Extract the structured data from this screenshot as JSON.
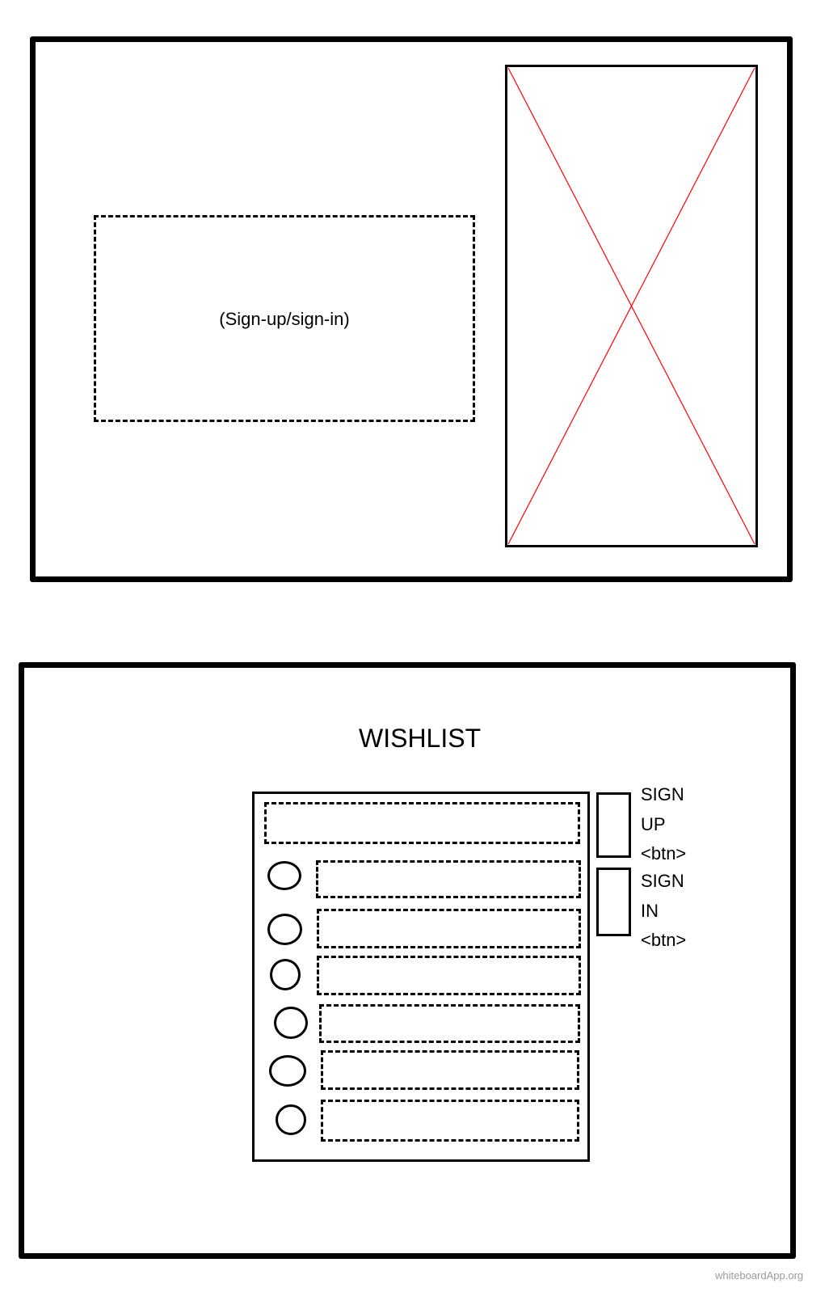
{
  "wireframe_1": {
    "auth_panel_label": "(Sign-up/sign-in)",
    "image_placeholder_color": "#ff0000"
  },
  "wireframe_2": {
    "title": "WISHLIST",
    "sign_up_button": {
      "line1": "SIGN",
      "line2": "UP",
      "line3": "<btn>"
    },
    "sign_in_button": {
      "line1": "SIGN",
      "line2": "IN",
      "line3": "<btn>"
    },
    "wishlist_item_count": 6
  },
  "watermark": "whiteboardApp.org"
}
